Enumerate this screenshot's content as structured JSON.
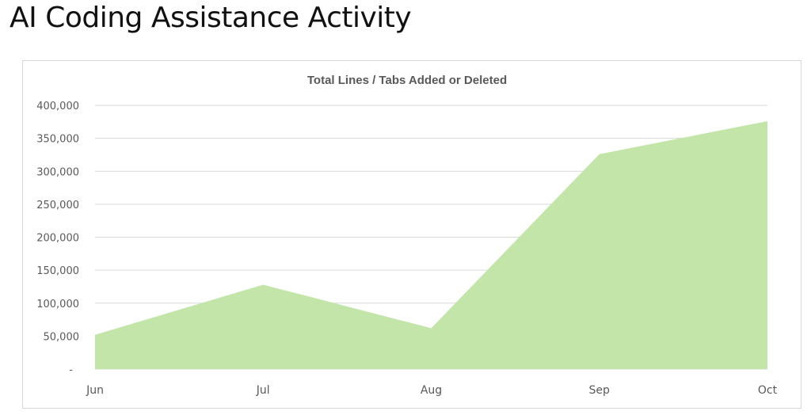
{
  "page": {
    "title": "AI Coding Assistance Activity"
  },
  "chart_data": {
    "type": "area",
    "title": "Total Lines / Tabs Added or Deleted",
    "xlabel": "",
    "ylabel": "",
    "categories": [
      "Jun",
      "Jul",
      "Aug",
      "Sep",
      "Oct"
    ],
    "series": [
      {
        "values": [
          52000,
          128000,
          62000,
          326000,
          376000
        ],
        "color": "#c3e5aa"
      }
    ],
    "ylim": [
      0,
      400000
    ],
    "yticks": [
      0,
      50000,
      100000,
      150000,
      200000,
      250000,
      300000,
      350000,
      400000
    ],
    "ytick_labels": [
      "-",
      "50,000",
      "100,000",
      "150,000",
      "200,000",
      "250,000",
      "300,000",
      "350,000",
      "400,000"
    ],
    "grid": true,
    "legend": "none",
    "gridline_color": "#d9d9d9",
    "text_color": "#595959"
  }
}
